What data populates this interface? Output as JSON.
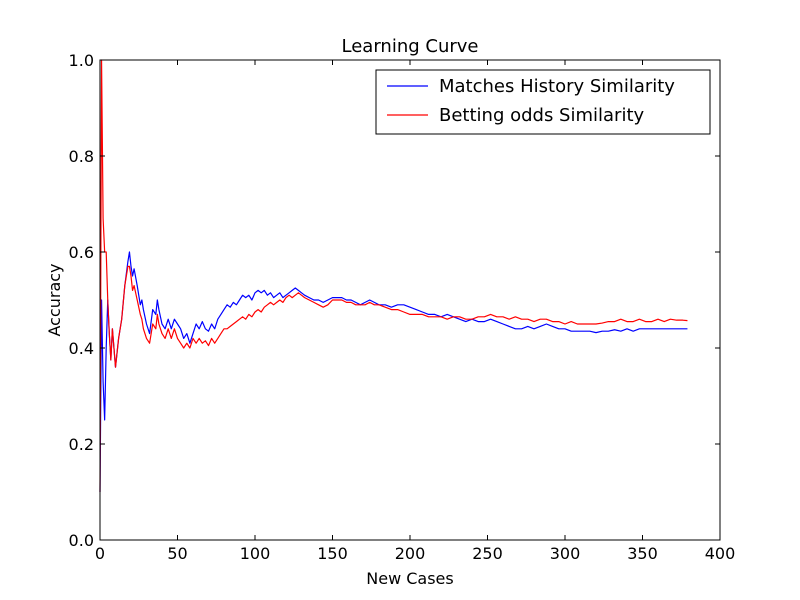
{
  "chart_data": {
    "type": "line",
    "title": "Learning Curve",
    "xlabel": "New Cases",
    "ylabel": "Accuracy",
    "xlim": [
      0,
      400
    ],
    "ylim": [
      0,
      1.0
    ],
    "xticks": [
      "0",
      "50",
      "100",
      "150",
      "200",
      "250",
      "300",
      "350",
      "400"
    ],
    "yticks": [
      "0.0",
      "0.2",
      "0.4",
      "0.6",
      "0.8",
      "1.0"
    ],
    "grid": false,
    "legend_position": "top-right",
    "series": [
      {
        "name": "Matches History Similarity",
        "color": "#0000ff",
        "points": [
          [
            0,
            0.1
          ],
          [
            1,
            0.5
          ],
          [
            2,
            0.33
          ],
          [
            3,
            0.25
          ],
          [
            4,
            0.4
          ],
          [
            5,
            0.5
          ],
          [
            6,
            0.43
          ],
          [
            7,
            0.375
          ],
          [
            8,
            0.44
          ],
          [
            9,
            0.4
          ],
          [
            10,
            0.36
          ],
          [
            12,
            0.42
          ],
          [
            14,
            0.46
          ],
          [
            16,
            0.53
          ],
          [
            18,
            0.58
          ],
          [
            19,
            0.6
          ],
          [
            20,
            0.57
          ],
          [
            21,
            0.55
          ],
          [
            22,
            0.565
          ],
          [
            24,
            0.53
          ],
          [
            26,
            0.49
          ],
          [
            27,
            0.5
          ],
          [
            28,
            0.48
          ],
          [
            30,
            0.45
          ],
          [
            32,
            0.43
          ],
          [
            34,
            0.48
          ],
          [
            36,
            0.47
          ],
          [
            37,
            0.5
          ],
          [
            38,
            0.48
          ],
          [
            40,
            0.45
          ],
          [
            42,
            0.44
          ],
          [
            44,
            0.46
          ],
          [
            46,
            0.44
          ],
          [
            48,
            0.46
          ],
          [
            50,
            0.45
          ],
          [
            52,
            0.44
          ],
          [
            54,
            0.42
          ],
          [
            56,
            0.43
          ],
          [
            58,
            0.41
          ],
          [
            60,
            0.43
          ],
          [
            62,
            0.45
          ],
          [
            64,
            0.44
          ],
          [
            66,
            0.455
          ],
          [
            68,
            0.44
          ],
          [
            70,
            0.435
          ],
          [
            72,
            0.45
          ],
          [
            74,
            0.44
          ],
          [
            76,
            0.46
          ],
          [
            78,
            0.47
          ],
          [
            80,
            0.48
          ],
          [
            82,
            0.49
          ],
          [
            84,
            0.485
          ],
          [
            86,
            0.495
          ],
          [
            88,
            0.49
          ],
          [
            90,
            0.5
          ],
          [
            92,
            0.51
          ],
          [
            94,
            0.505
          ],
          [
            96,
            0.51
          ],
          [
            98,
            0.5
          ],
          [
            100,
            0.515
          ],
          [
            102,
            0.52
          ],
          [
            104,
            0.515
          ],
          [
            106,
            0.52
          ],
          [
            108,
            0.51
          ],
          [
            110,
            0.515
          ],
          [
            112,
            0.505
          ],
          [
            114,
            0.51
          ],
          [
            116,
            0.515
          ],
          [
            118,
            0.505
          ],
          [
            120,
            0.51
          ],
          [
            122,
            0.515
          ],
          [
            124,
            0.52
          ],
          [
            126,
            0.525
          ],
          [
            128,
            0.52
          ],
          [
            130,
            0.515
          ],
          [
            132,
            0.51
          ],
          [
            135,
            0.505
          ],
          [
            138,
            0.5
          ],
          [
            141,
            0.5
          ],
          [
            144,
            0.495
          ],
          [
            147,
            0.5
          ],
          [
            150,
            0.505
          ],
          [
            153,
            0.505
          ],
          [
            156,
            0.505
          ],
          [
            159,
            0.5
          ],
          [
            162,
            0.5
          ],
          [
            165,
            0.495
          ],
          [
            168,
            0.49
          ],
          [
            171,
            0.495
          ],
          [
            174,
            0.5
          ],
          [
            177,
            0.495
          ],
          [
            180,
            0.49
          ],
          [
            184,
            0.49
          ],
          [
            188,
            0.485
          ],
          [
            192,
            0.49
          ],
          [
            196,
            0.49
          ],
          [
            200,
            0.485
          ],
          [
            204,
            0.48
          ],
          [
            208,
            0.475
          ],
          [
            212,
            0.47
          ],
          [
            216,
            0.47
          ],
          [
            220,
            0.465
          ],
          [
            224,
            0.47
          ],
          [
            228,
            0.465
          ],
          [
            232,
            0.46
          ],
          [
            236,
            0.455
          ],
          [
            240,
            0.46
          ],
          [
            244,
            0.455
          ],
          [
            248,
            0.455
          ],
          [
            252,
            0.46
          ],
          [
            256,
            0.455
          ],
          [
            260,
            0.45
          ],
          [
            264,
            0.445
          ],
          [
            268,
            0.44
          ],
          [
            272,
            0.44
          ],
          [
            276,
            0.445
          ],
          [
            280,
            0.44
          ],
          [
            284,
            0.445
          ],
          [
            288,
            0.45
          ],
          [
            292,
            0.445
          ],
          [
            296,
            0.44
          ],
          [
            300,
            0.44
          ],
          [
            304,
            0.435
          ],
          [
            308,
            0.435
          ],
          [
            312,
            0.435
          ],
          [
            316,
            0.435
          ],
          [
            320,
            0.432
          ],
          [
            324,
            0.435
          ],
          [
            328,
            0.435
          ],
          [
            332,
            0.438
          ],
          [
            336,
            0.435
          ],
          [
            340,
            0.44
          ],
          [
            344,
            0.435
          ],
          [
            348,
            0.44
          ],
          [
            352,
            0.44
          ],
          [
            356,
            0.44
          ],
          [
            360,
            0.44
          ],
          [
            364,
            0.44
          ],
          [
            368,
            0.44
          ],
          [
            372,
            0.44
          ],
          [
            376,
            0.44
          ],
          [
            379,
            0.44
          ]
        ]
      },
      {
        "name": "Betting odds Similarity",
        "color": "#ff0000",
        "points": [
          [
            0,
            0.1
          ],
          [
            1,
            1.0
          ],
          [
            2,
            0.67
          ],
          [
            3,
            0.6
          ],
          [
            4,
            0.6
          ],
          [
            5,
            0.5
          ],
          [
            6,
            0.43
          ],
          [
            7,
            0.375
          ],
          [
            8,
            0.44
          ],
          [
            9,
            0.4
          ],
          [
            10,
            0.36
          ],
          [
            12,
            0.42
          ],
          [
            14,
            0.46
          ],
          [
            16,
            0.53
          ],
          [
            18,
            0.57
          ],
          [
            19,
            0.57
          ],
          [
            20,
            0.55
          ],
          [
            21,
            0.52
          ],
          [
            22,
            0.53
          ],
          [
            24,
            0.5
          ],
          [
            26,
            0.47
          ],
          [
            27,
            0.46
          ],
          [
            28,
            0.44
          ],
          [
            30,
            0.42
          ],
          [
            32,
            0.41
          ],
          [
            34,
            0.45
          ],
          [
            36,
            0.44
          ],
          [
            37,
            0.47
          ],
          [
            38,
            0.45
          ],
          [
            40,
            0.43
          ],
          [
            42,
            0.42
          ],
          [
            44,
            0.44
          ],
          [
            46,
            0.42
          ],
          [
            48,
            0.44
          ],
          [
            50,
            0.42
          ],
          [
            52,
            0.41
          ],
          [
            54,
            0.4
          ],
          [
            56,
            0.41
          ],
          [
            58,
            0.4
          ],
          [
            60,
            0.42
          ],
          [
            62,
            0.41
          ],
          [
            64,
            0.42
          ],
          [
            66,
            0.41
          ],
          [
            68,
            0.415
          ],
          [
            70,
            0.405
          ],
          [
            72,
            0.42
          ],
          [
            74,
            0.41
          ],
          [
            76,
            0.42
          ],
          [
            78,
            0.43
          ],
          [
            80,
            0.44
          ],
          [
            82,
            0.44
          ],
          [
            84,
            0.445
          ],
          [
            86,
            0.45
          ],
          [
            88,
            0.455
          ],
          [
            90,
            0.46
          ],
          [
            92,
            0.465
          ],
          [
            94,
            0.46
          ],
          [
            96,
            0.47
          ],
          [
            98,
            0.465
          ],
          [
            100,
            0.475
          ],
          [
            102,
            0.48
          ],
          [
            104,
            0.475
          ],
          [
            106,
            0.485
          ],
          [
            108,
            0.49
          ],
          [
            110,
            0.495
          ],
          [
            112,
            0.49
          ],
          [
            114,
            0.495
          ],
          [
            116,
            0.5
          ],
          [
            118,
            0.495
          ],
          [
            120,
            0.505
          ],
          [
            122,
            0.51
          ],
          [
            124,
            0.505
          ],
          [
            126,
            0.51
          ],
          [
            128,
            0.515
          ],
          [
            130,
            0.51
          ],
          [
            132,
            0.505
          ],
          [
            135,
            0.5
          ],
          [
            138,
            0.495
          ],
          [
            141,
            0.49
          ],
          [
            144,
            0.485
          ],
          [
            147,
            0.49
          ],
          [
            150,
            0.5
          ],
          [
            153,
            0.5
          ],
          [
            156,
            0.5
          ],
          [
            159,
            0.495
          ],
          [
            162,
            0.495
          ],
          [
            165,
            0.49
          ],
          [
            168,
            0.49
          ],
          [
            171,
            0.49
          ],
          [
            174,
            0.495
          ],
          [
            177,
            0.49
          ],
          [
            180,
            0.49
          ],
          [
            184,
            0.485
          ],
          [
            188,
            0.48
          ],
          [
            192,
            0.48
          ],
          [
            196,
            0.475
          ],
          [
            200,
            0.47
          ],
          [
            204,
            0.47
          ],
          [
            208,
            0.47
          ],
          [
            212,
            0.465
          ],
          [
            216,
            0.465
          ],
          [
            220,
            0.465
          ],
          [
            224,
            0.46
          ],
          [
            228,
            0.465
          ],
          [
            232,
            0.465
          ],
          [
            236,
            0.46
          ],
          [
            240,
            0.46
          ],
          [
            244,
            0.465
          ],
          [
            248,
            0.465
          ],
          [
            252,
            0.47
          ],
          [
            256,
            0.465
          ],
          [
            260,
            0.465
          ],
          [
            264,
            0.46
          ],
          [
            268,
            0.465
          ],
          [
            272,
            0.46
          ],
          [
            276,
            0.46
          ],
          [
            280,
            0.455
          ],
          [
            284,
            0.46
          ],
          [
            288,
            0.46
          ],
          [
            292,
            0.455
          ],
          [
            296,
            0.455
          ],
          [
            300,
            0.45
          ],
          [
            304,
            0.455
          ],
          [
            308,
            0.45
          ],
          [
            312,
            0.45
          ],
          [
            316,
            0.45
          ],
          [
            320,
            0.45
          ],
          [
            324,
            0.452
          ],
          [
            328,
            0.455
          ],
          [
            332,
            0.455
          ],
          [
            336,
            0.46
          ],
          [
            340,
            0.455
          ],
          [
            344,
            0.455
          ],
          [
            348,
            0.46
          ],
          [
            352,
            0.455
          ],
          [
            356,
            0.455
          ],
          [
            360,
            0.46
          ],
          [
            364,
            0.455
          ],
          [
            368,
            0.46
          ],
          [
            372,
            0.458
          ],
          [
            376,
            0.458
          ],
          [
            379,
            0.457
          ]
        ]
      }
    ]
  }
}
